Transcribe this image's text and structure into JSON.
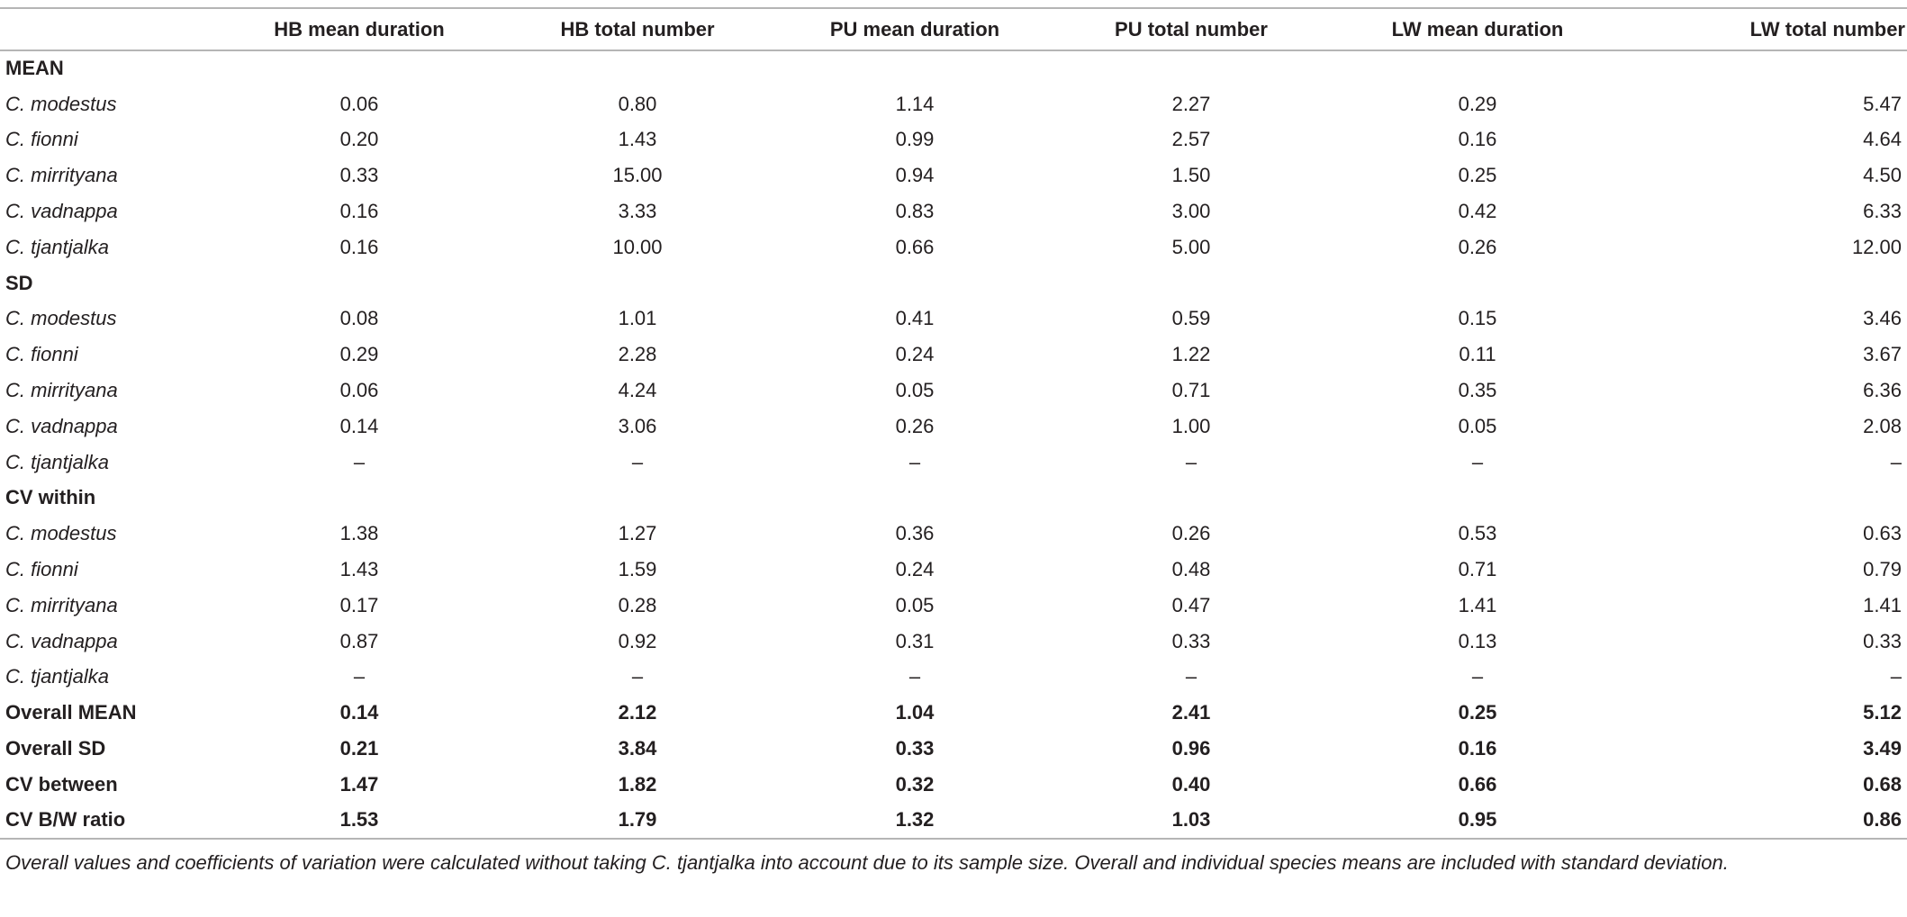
{
  "table": {
    "headers": [
      "",
      "HB mean duration",
      "HB total number",
      "PU mean duration",
      "PU total number",
      "LW mean duration",
      "LW total number"
    ],
    "rows": [
      {
        "type": "section",
        "label": "MEAN",
        "values": []
      },
      {
        "type": "species",
        "label": "C. modestus",
        "values": [
          "0.06",
          "0.80",
          "1.14",
          "2.27",
          "0.29",
          "5.47"
        ]
      },
      {
        "type": "species",
        "label": "C. fionni",
        "values": [
          "0.20",
          "1.43",
          "0.99",
          "2.57",
          "0.16",
          "4.64"
        ]
      },
      {
        "type": "species",
        "label": "C. mirrityana",
        "values": [
          "0.33",
          "15.00",
          "0.94",
          "1.50",
          "0.25",
          "4.50"
        ]
      },
      {
        "type": "species",
        "label": "C. vadnappa",
        "values": [
          "0.16",
          "3.33",
          "0.83",
          "3.00",
          "0.42",
          "6.33"
        ]
      },
      {
        "type": "species",
        "label": "C. tjantjalka",
        "values": [
          "0.16",
          "10.00",
          "0.66",
          "5.00",
          "0.26",
          "12.00"
        ]
      },
      {
        "type": "section",
        "label": "SD",
        "values": []
      },
      {
        "type": "species",
        "label": "C. modestus",
        "values": [
          "0.08",
          "1.01",
          "0.41",
          "0.59",
          "0.15",
          "3.46"
        ]
      },
      {
        "type": "species",
        "label": "C. fionni",
        "values": [
          "0.29",
          "2.28",
          "0.24",
          "1.22",
          "0.11",
          "3.67"
        ]
      },
      {
        "type": "species",
        "label": "C. mirrityana",
        "values": [
          "0.06",
          "4.24",
          "0.05",
          "0.71",
          "0.35",
          "6.36"
        ]
      },
      {
        "type": "species",
        "label": "C. vadnappa",
        "values": [
          "0.14",
          "3.06",
          "0.26",
          "1.00",
          "0.05",
          "2.08"
        ]
      },
      {
        "type": "species",
        "label": "C. tjantjalka",
        "values": [
          "–",
          "–",
          "–",
          "–",
          "–",
          "–"
        ]
      },
      {
        "type": "section",
        "label": "CV within",
        "values": []
      },
      {
        "type": "species",
        "label": "C. modestus",
        "values": [
          "1.38",
          "1.27",
          "0.36",
          "0.26",
          "0.53",
          "0.63"
        ]
      },
      {
        "type": "species",
        "label": "C. fionni",
        "values": [
          "1.43",
          "1.59",
          "0.24",
          "0.48",
          "0.71",
          "0.79"
        ]
      },
      {
        "type": "species",
        "label": "C. mirrityana",
        "values": [
          "0.17",
          "0.28",
          "0.05",
          "0.47",
          "1.41",
          "1.41"
        ]
      },
      {
        "type": "species",
        "label": "C. vadnappa",
        "values": [
          "0.87",
          "0.92",
          "0.31",
          "0.33",
          "0.13",
          "0.33"
        ]
      },
      {
        "type": "species",
        "label": "C. tjantjalka",
        "values": [
          "–",
          "–",
          "–",
          "–",
          "–",
          "–"
        ]
      },
      {
        "type": "summary",
        "label": "Overall MEAN",
        "values": [
          "0.14",
          "2.12",
          "1.04",
          "2.41",
          "0.25",
          "5.12"
        ]
      },
      {
        "type": "summary",
        "label": "Overall SD",
        "values": [
          "0.21",
          "3.84",
          "0.33",
          "0.96",
          "0.16",
          "3.49"
        ]
      },
      {
        "type": "summary",
        "label": "CV between",
        "values": [
          "1.47",
          "1.82",
          "0.32",
          "0.40",
          "0.66",
          "0.68"
        ]
      },
      {
        "type": "summary",
        "label": "CV B/W ratio",
        "values": [
          "1.53",
          "1.79",
          "1.32",
          "1.03",
          "0.95",
          "0.86"
        ]
      }
    ]
  },
  "footnote": "Overall values and coefficients of variation were calculated without taking C. tjantjalka into account due to its sample size. Overall and individual species means are included with standard deviation.",
  "colors": {
    "rule": "#b5b5b5",
    "text": "#231f20"
  }
}
